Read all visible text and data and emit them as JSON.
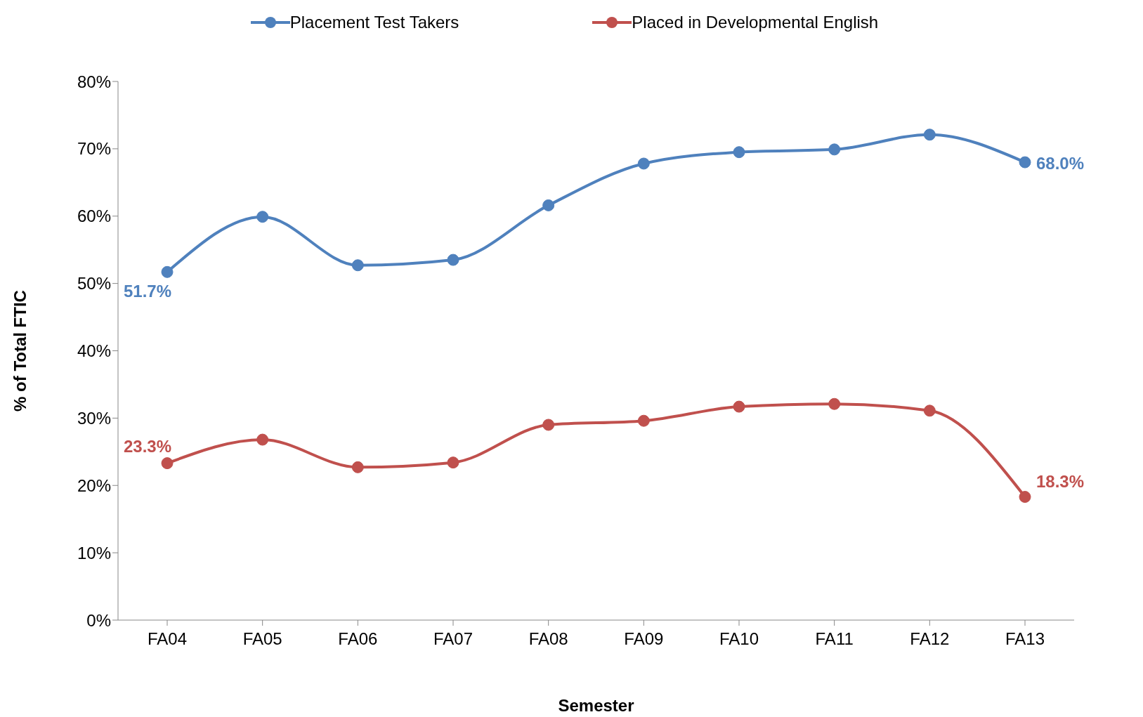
{
  "chart_data": {
    "type": "line",
    "xlabel": "Semester",
    "ylabel": "% of Total FTIC",
    "categories": [
      "FA04",
      "FA05",
      "FA06",
      "FA07",
      "FA08",
      "FA09",
      "FA10",
      "FA11",
      "FA12",
      "FA13"
    ],
    "series": [
      {
        "name": "Placement Test Takers",
        "color": "#4f81bd",
        "values": [
          51.7,
          59.9,
          52.7,
          53.5,
          61.6,
          67.8,
          69.5,
          69.9,
          72.1,
          68.0
        ],
        "value_labels": [
          "51.7%",
          null,
          null,
          null,
          null,
          null,
          null,
          null,
          null,
          "68.0%"
        ]
      },
      {
        "name": "Placed in Developmental English",
        "color": "#c0504d",
        "values": [
          23.3,
          26.8,
          22.7,
          23.4,
          29.0,
          29.6,
          31.7,
          32.1,
          31.1,
          18.3
        ],
        "value_labels": [
          "23.3%",
          null,
          null,
          null,
          null,
          null,
          null,
          null,
          null,
          "18.3%"
        ]
      }
    ],
    "ylim": [
      0,
      80
    ],
    "yticks": [
      {
        "value": 0,
        "label": "0%"
      },
      {
        "value": 10,
        "label": "10%"
      },
      {
        "value": 20,
        "label": "20%"
      },
      {
        "value": 30,
        "label": "30%"
      },
      {
        "value": 40,
        "label": "40%"
      },
      {
        "value": 50,
        "label": "50%"
      },
      {
        "value": 60,
        "label": "60%"
      },
      {
        "value": 70,
        "label": "70%"
      },
      {
        "value": 80,
        "label": "80%"
      }
    ],
    "grid": false,
    "legend": "top",
    "marker": "circle",
    "line_style": "solid"
  }
}
